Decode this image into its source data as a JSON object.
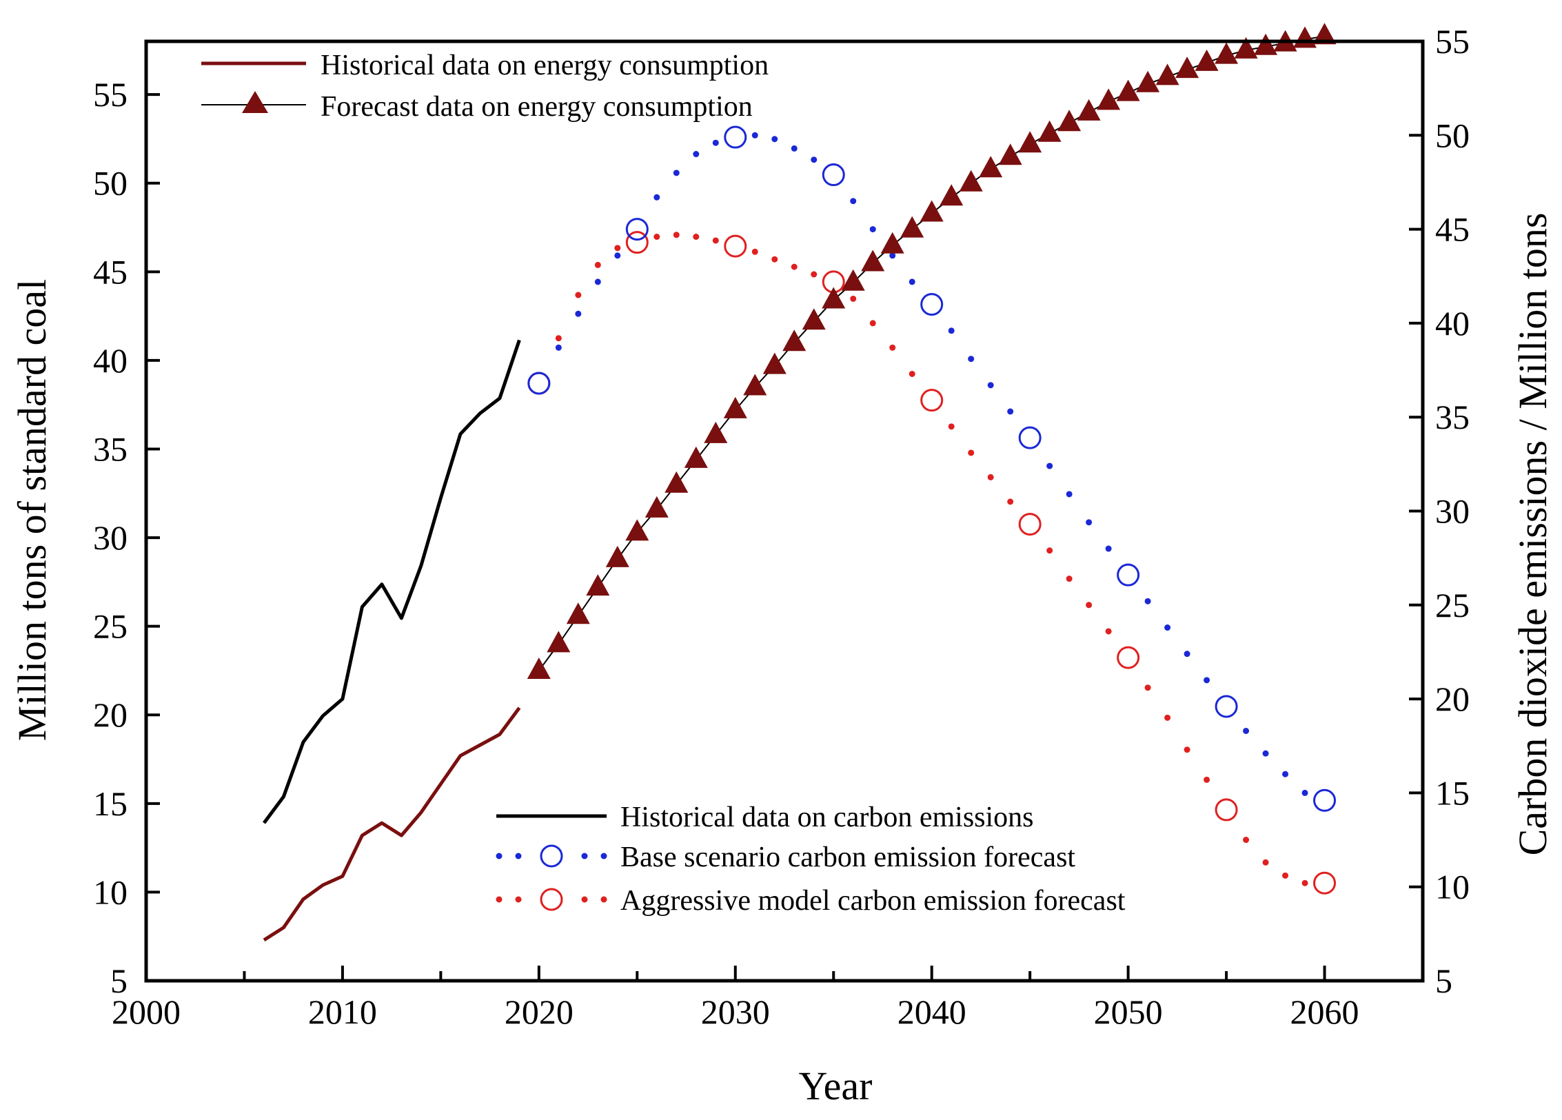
{
  "chart_data": {
    "type": "line",
    "xlabel": "Year",
    "ylabel_left": "Million tons of standard coal",
    "ylabel_right": "Carbon dioxide emissions / Million tons",
    "xlim": [
      2000,
      2065
    ],
    "ylim_left": [
      5,
      58
    ],
    "ylim_right": [
      5,
      55
    ],
    "x_ticks": [
      2000,
      2010,
      2020,
      2030,
      2040,
      2050,
      2060
    ],
    "y_left_ticks": [
      5,
      10,
      15,
      20,
      25,
      30,
      35,
      40,
      45,
      50,
      55
    ],
    "y_right_ticks": [
      5,
      10,
      15,
      20,
      25,
      30,
      35,
      40,
      45,
      50,
      55
    ],
    "legend_top": [
      "Historical data on energy consumption",
      "Forecast data on energy consumption"
    ],
    "legend_bottom": [
      "Historical data on carbon emissions",
      "Base scenario carbon emission forecast",
      "Aggressive model carbon emission forecast"
    ],
    "colors": {
      "energy": "#7a0f0f",
      "carbon_hist": "#000000",
      "base": "#1a28d6",
      "aggressive": "#e02020",
      "axis": "#000000"
    },
    "series": [
      {
        "name": "Historical data on energy consumption",
        "axis": "left",
        "style": "solid",
        "x": [
          2006,
          2007,
          2008,
          2009,
          2010,
          2011,
          2012,
          2013,
          2014,
          2015,
          2016,
          2017,
          2018,
          2019
        ],
        "values": [
          7.3,
          8.0,
          9.6,
          10.4,
          10.9,
          13.2,
          13.9,
          13.2,
          14.5,
          16.1,
          17.7,
          18.3,
          18.9,
          20.4
        ]
      },
      {
        "name": "Forecast data on energy consumption",
        "axis": "left",
        "style": "triangle",
        "x": [
          2020,
          2021,
          2022,
          2023,
          2024,
          2025,
          2026,
          2027,
          2028,
          2029,
          2030,
          2031,
          2032,
          2033,
          2034,
          2035,
          2036,
          2037,
          2038,
          2039,
          2040,
          2041,
          2042,
          2043,
          2044,
          2045,
          2046,
          2047,
          2048,
          2049,
          2050,
          2051,
          2052,
          2053,
          2054,
          2055,
          2056,
          2057,
          2058,
          2059,
          2060
        ],
        "values": [
          22.5,
          24.0,
          25.6,
          27.2,
          28.8,
          30.3,
          31.6,
          33.0,
          34.4,
          35.8,
          37.2,
          38.5,
          39.7,
          41.0,
          42.2,
          43.4,
          44.4,
          45.5,
          46.5,
          47.4,
          48.3,
          49.2,
          50.0,
          50.8,
          51.5,
          52.2,
          52.8,
          53.4,
          54.0,
          54.6,
          55.1,
          55.6,
          56.0,
          56.4,
          56.8,
          57.2,
          57.5,
          57.7,
          57.9,
          58.1,
          58.3
        ]
      },
      {
        "name": "Historical data on carbon emissions",
        "axis": "right",
        "style": "solid",
        "x": [
          2006,
          2007,
          2008,
          2009,
          2010,
          2011,
          2012,
          2013,
          2014,
          2015,
          2016,
          2017,
          2018,
          2019
        ],
        "values": [
          13.4,
          14.8,
          17.7,
          19.1,
          20.0,
          24.9,
          26.1,
          24.3,
          27.1,
          30.7,
          34.1,
          35.2,
          36.0,
          39.1
        ]
      },
      {
        "name": "Base scenario carbon emission forecast",
        "axis": "right",
        "style": "dotted",
        "x": [
          2020,
          2021,
          2022,
          2023,
          2024,
          2025,
          2026,
          2027,
          2028,
          2029,
          2030,
          2031,
          2032,
          2033,
          2034,
          2035,
          2036,
          2037,
          2038,
          2039,
          2040,
          2041,
          2042,
          2043,
          2044,
          2045,
          2046,
          2047,
          2048,
          2049,
          2050,
          2051,
          2052,
          2053,
          2054,
          2055,
          2056,
          2057,
          2058,
          2059,
          2060
        ],
        "values": [
          36.8,
          38.7,
          40.5,
          42.2,
          43.6,
          45.0,
          46.7,
          48.0,
          49.0,
          49.6,
          49.9,
          50.0,
          49.8,
          49.3,
          48.7,
          47.9,
          46.5,
          45.0,
          43.6,
          42.2,
          41.0,
          39.6,
          38.1,
          36.7,
          35.3,
          33.9,
          32.4,
          30.9,
          29.4,
          28.0,
          26.6,
          25.2,
          23.8,
          22.4,
          21.0,
          19.6,
          18.3,
          17.1,
          16.0,
          15.0,
          14.6
        ]
      },
      {
        "name": "Aggressive model carbon emission forecast",
        "axis": "right",
        "style": "dotted",
        "x": [
          2020,
          2021,
          2022,
          2023,
          2024,
          2025,
          2026,
          2027,
          2028,
          2029,
          2030,
          2031,
          2032,
          2033,
          2034,
          2035,
          2036,
          2037,
          2038,
          2039,
          2040,
          2041,
          2042,
          2043,
          2044,
          2045,
          2046,
          2047,
          2048,
          2049,
          2050,
          2051,
          2052,
          2053,
          2054,
          2055,
          2056,
          2057,
          2058,
          2059,
          2060
        ],
        "values": [
          36.8,
          39.2,
          41.5,
          43.1,
          44.0,
          44.3,
          44.6,
          44.7,
          44.6,
          44.4,
          44.1,
          43.8,
          43.4,
          43.0,
          42.6,
          42.2,
          41.3,
          40.0,
          38.7,
          37.3,
          35.9,
          34.5,
          33.1,
          31.8,
          30.5,
          29.3,
          27.9,
          26.4,
          25.0,
          23.6,
          22.2,
          20.6,
          19.0,
          17.3,
          15.7,
          14.1,
          12.5,
          11.3,
          10.6,
          10.2,
          10.2
        ]
      }
    ]
  }
}
